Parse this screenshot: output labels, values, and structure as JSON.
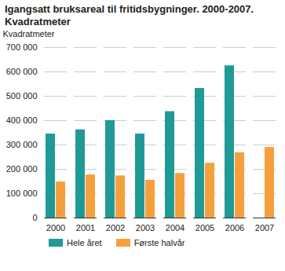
{
  "chart_data": {
    "type": "bar",
    "title": "Igangsatt bruksareal til fritidsbygninger. 2000-2007. Kvadratmeter",
    "y_label": "Kvadratmeter",
    "categories": [
      "2000",
      "2001",
      "2002",
      "2003",
      "2004",
      "2005",
      "2006",
      "2007"
    ],
    "series": [
      {
        "name": "Hele året",
        "color": "#1f9a96",
        "values": [
          345000,
          362000,
          400000,
          345000,
          437000,
          532000,
          625000,
          null
        ]
      },
      {
        "name": "Første halvår",
        "color": "#f5a03c",
        "values": [
          148000,
          177000,
          173000,
          155000,
          183000,
          225000,
          268000,
          290000
        ]
      }
    ],
    "ylim": [
      0,
      700000
    ],
    "yticks": [
      0,
      {
        "value": 100000,
        "label": "100 000"
      },
      {
        "value": 200000,
        "label": "200 000"
      },
      {
        "value": 300000,
        "label": "300 000"
      },
      {
        "value": 400000,
        "label": "400 000"
      },
      {
        "value": 500000,
        "label": "500 000"
      },
      {
        "value": 600000,
        "label": "600 000"
      },
      {
        "value": 700000,
        "label": "700 000"
      }
    ],
    "grid": true,
    "legend": "bottom"
  }
}
